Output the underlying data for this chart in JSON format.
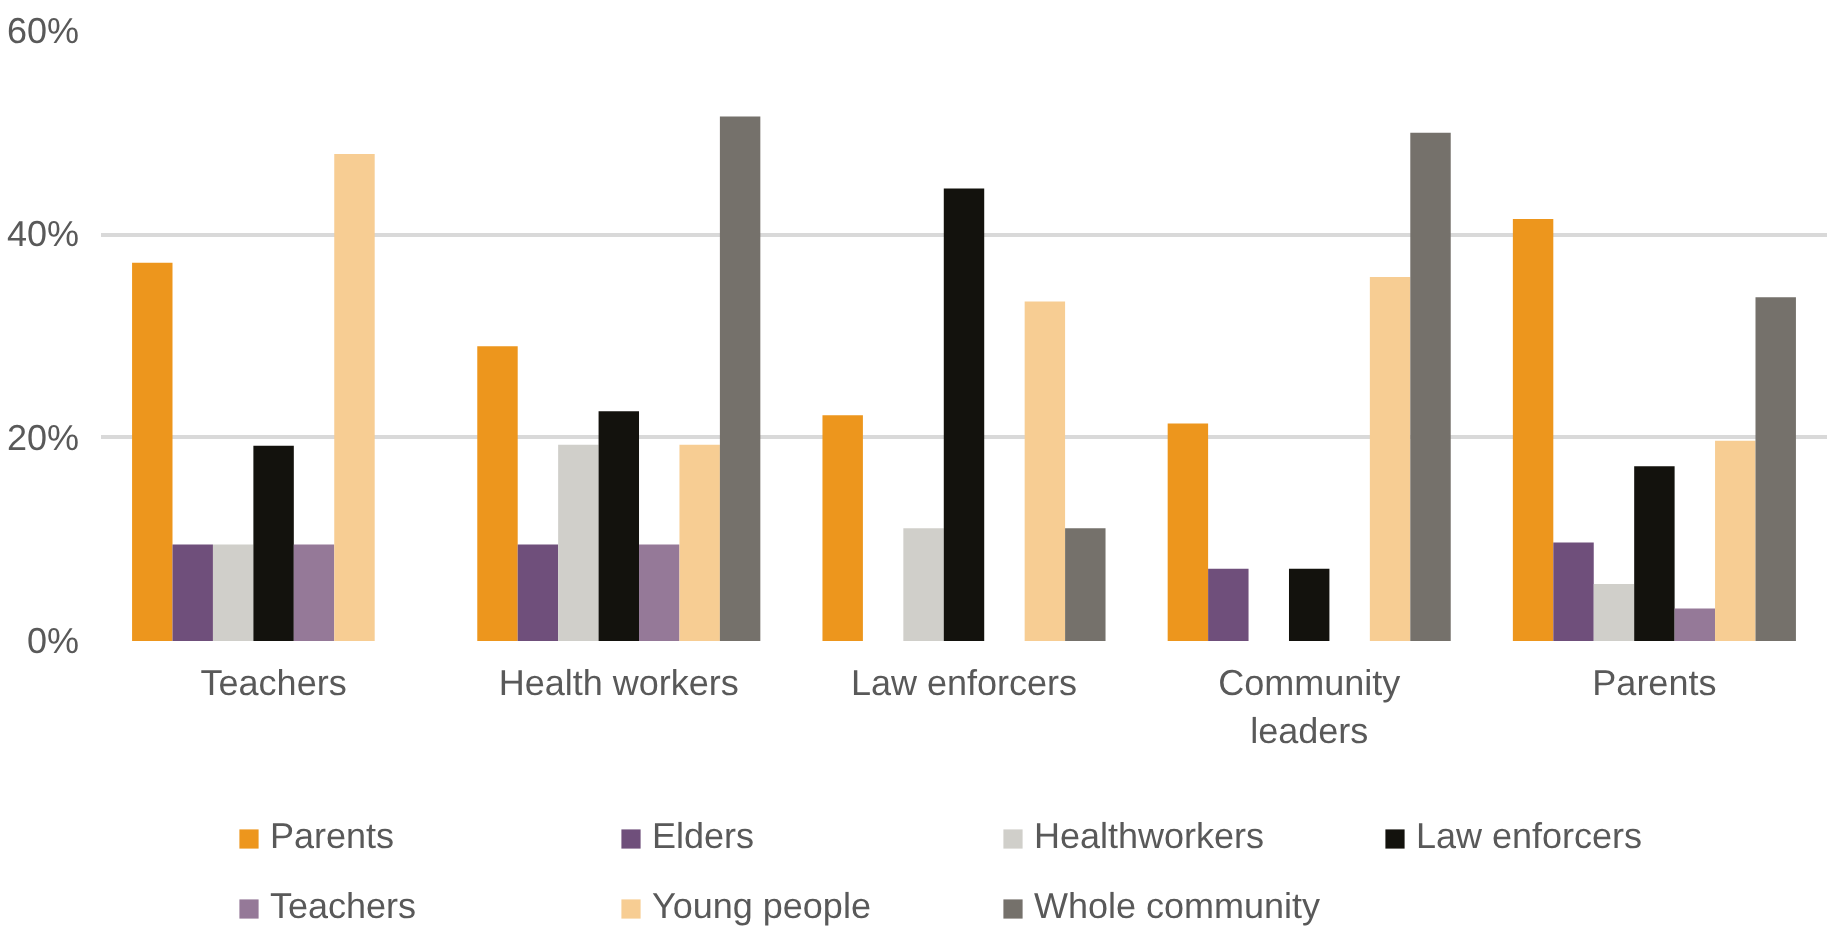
{
  "chart_data": {
    "type": "bar",
    "categories": [
      "Teachers",
      "Health workers",
      "Law enforcers",
      "Community leaders",
      "Parents"
    ],
    "ylim": [
      0,
      60
    ],
    "yticks": [
      {
        "value": 0,
        "label": "0%"
      },
      {
        "value": 20,
        "label": "20%"
      },
      {
        "value": 40,
        "label": "40%"
      },
      {
        "value": 60,
        "label": "60%"
      }
    ],
    "grid": "y",
    "legend": "bottom",
    "series": [
      {
        "name": "Parents",
        "color": "#ed961d",
        "values": [
          37.2,
          29.0,
          22.2,
          21.4,
          41.5
        ]
      },
      {
        "name": "Elders",
        "color": "#6f4f7b",
        "values": [
          9.5,
          9.5,
          0,
          7.1,
          9.7
        ]
      },
      {
        "name": "Healthworkers",
        "color": "#d0cfca",
        "values": [
          9.5,
          19.3,
          11.1,
          0,
          5.6
        ]
      },
      {
        "name": "Law enforcers",
        "color": "#13120d",
        "values": [
          19.2,
          22.6,
          44.5,
          7.1,
          17.2
        ]
      },
      {
        "name": "Teachers",
        "color": "#957998",
        "values": [
          9.5,
          9.5,
          0,
          0,
          3.2
        ]
      },
      {
        "name": "Young people",
        "color": "#f7cd93",
        "values": [
          47.9,
          19.3,
          33.4,
          35.8,
          19.7
        ]
      },
      {
        "name": "Whole community",
        "color": "#75716b",
        "values": [
          0,
          51.6,
          11.1,
          50.0,
          33.8
        ]
      }
    ]
  }
}
